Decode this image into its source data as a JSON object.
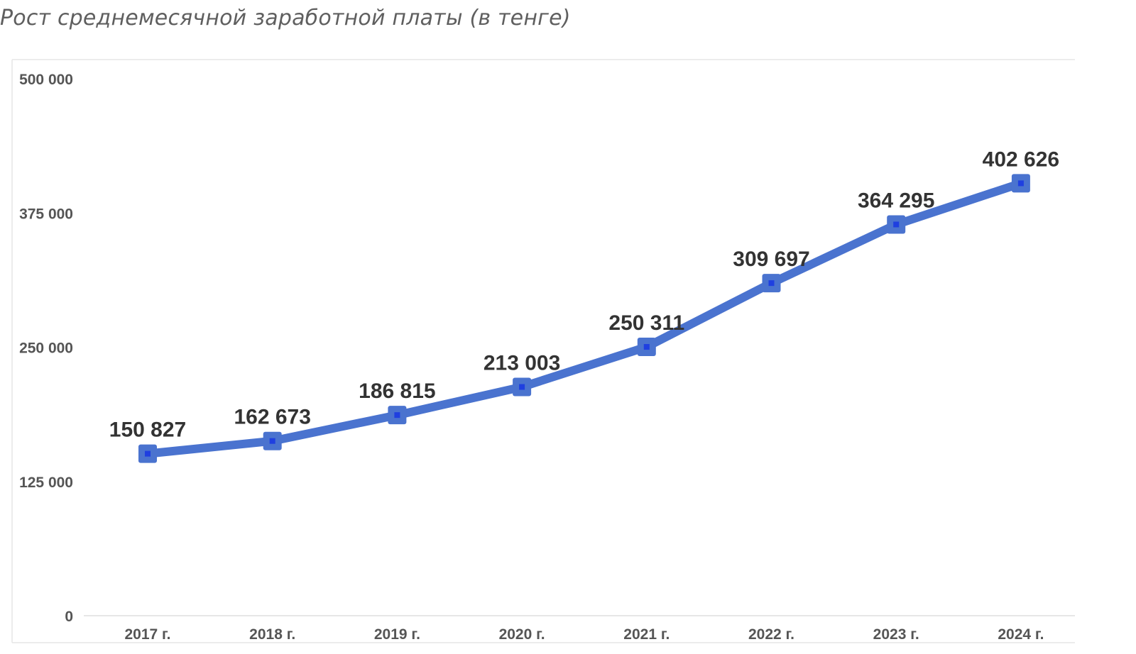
{
  "title": "Рост среднемесячной заработной платы (в тенге)",
  "colors": {
    "line": "#4A73CF",
    "marker_center": "#1F3FE0",
    "frame": "#e6e6e6",
    "tick_text": "#555555",
    "label_text": "#333333"
  },
  "chart_data": {
    "type": "line",
    "title": "Рост среднемесячной заработной платы (в тенге)",
    "xlabel": "",
    "ylabel": "",
    "categories": [
      "2017 г.",
      "2018 г.",
      "2019 г.",
      "2020 г.",
      "2021 г.",
      "2022 г.",
      "2023 г.",
      "2024 г."
    ],
    "values": [
      150827,
      162673,
      186815,
      213003,
      250311,
      309697,
      364295,
      402626
    ],
    "value_labels": [
      "150 827",
      "162 673",
      "186 815",
      "213 003",
      "250 311",
      "309 697",
      "364 295",
      "402 626"
    ],
    "ylim": [
      0,
      500000
    ],
    "yticks": [
      0,
      125000,
      250000,
      375000,
      500000
    ],
    "ytick_labels": [
      "0",
      "125 000",
      "250 000",
      "375 000",
      "500 000"
    ],
    "grid": false,
    "legend": "none",
    "marker": "square"
  }
}
